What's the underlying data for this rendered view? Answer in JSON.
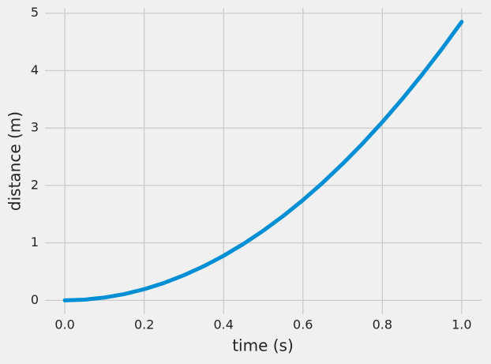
{
  "chart_data": {
    "type": "line",
    "x_label": "time (s)",
    "y_label": "distance (m)",
    "x": [
      0,
      0.05,
      0.1,
      0.15,
      0.2,
      0.25,
      0.3,
      0.35,
      0.4,
      0.45,
      0.5,
      0.55,
      0.6,
      0.65,
      0.7,
      0.75,
      0.8,
      0.85,
      0.9,
      0.95,
      1.0
    ],
    "values": [
      0,
      0.012,
      0.049,
      0.109,
      0.194,
      0.303,
      0.437,
      0.594,
      0.776,
      0.982,
      1.213,
      1.467,
      1.746,
      2.049,
      2.377,
      2.728,
      3.104,
      3.504,
      3.929,
      4.377,
      4.85
    ],
    "color": "#008fd5",
    "xlim": [
      -0.05,
      1.05
    ],
    "ylim": [
      -0.2425,
      5.0925
    ],
    "xticks": [
      {
        "value": 0,
        "label": "0.0"
      },
      {
        "value": 0.2,
        "label": "0.2"
      },
      {
        "value": 0.4,
        "label": "0.4"
      },
      {
        "value": 0.6,
        "label": "0.6"
      },
      {
        "value": 0.8,
        "label": "0.8"
      },
      {
        "value": 1.0,
        "label": "1.0"
      }
    ],
    "yticks": [
      0,
      1,
      2,
      3,
      4,
      5
    ],
    "grid": true
  }
}
